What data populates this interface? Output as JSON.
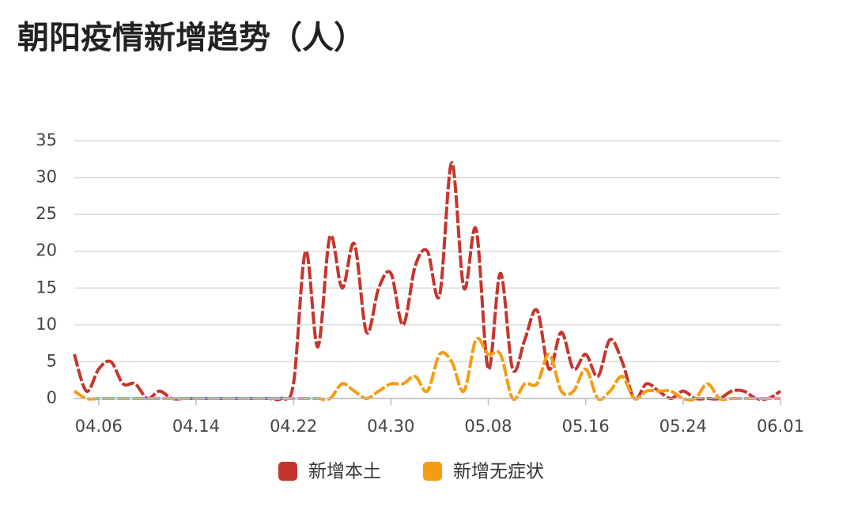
{
  "chart_data": {
    "type": "line",
    "title": "朝阳疫情新增趋势（人）",
    "categories": [
      null,
      null,
      "04.06",
      null,
      null,
      null,
      null,
      null,
      null,
      null,
      "04.14",
      null,
      null,
      null,
      null,
      null,
      null,
      null,
      "04.22",
      null,
      null,
      null,
      null,
      null,
      null,
      null,
      "04.30",
      null,
      null,
      null,
      null,
      null,
      null,
      null,
      "05.08",
      null,
      null,
      null,
      null,
      null,
      null,
      null,
      "05.16",
      null,
      null,
      null,
      null,
      null,
      null,
      null,
      "05.24",
      null,
      null,
      null,
      null,
      null,
      null,
      null,
      "06.01"
    ],
    "series": [
      {
        "name": "新增本土",
        "color": "#c4362d",
        "values": [
          6,
          1,
          4,
          5,
          2,
          2,
          0,
          1,
          0,
          0,
          0,
          0,
          0,
          0,
          0,
          0,
          0,
          0,
          2,
          20,
          7,
          22,
          15,
          21,
          9,
          15,
          17,
          10,
          18,
          20,
          14,
          32,
          15,
          23,
          4,
          17,
          4,
          8,
          12,
          4,
          9,
          4,
          6,
          3,
          8,
          5,
          0,
          2,
          1,
          0,
          1,
          0,
          0,
          0,
          1,
          1,
          0,
          0,
          1
        ]
      },
      {
        "name": "新增无症状",
        "color": "#f59d12",
        "values": [
          1,
          0,
          0,
          0,
          0,
          0,
          0,
          0,
          0,
          0,
          0,
          0,
          0,
          0,
          0,
          0,
          0,
          0,
          0,
          0,
          0,
          0,
          2,
          1,
          0,
          1,
          2,
          2,
          3,
          1,
          6,
          5,
          1,
          8,
          6,
          6,
          0,
          2,
          2,
          6,
          1,
          1,
          4,
          0,
          1,
          3,
          0,
          1,
          1,
          1,
          0,
          0,
          2,
          0,
          0,
          0,
          0,
          0,
          0
        ]
      }
    ],
    "ylim": [
      0,
      35
    ],
    "yticks": [
      0,
      5,
      10,
      15,
      20,
      25,
      30,
      35
    ],
    "grid": true
  }
}
